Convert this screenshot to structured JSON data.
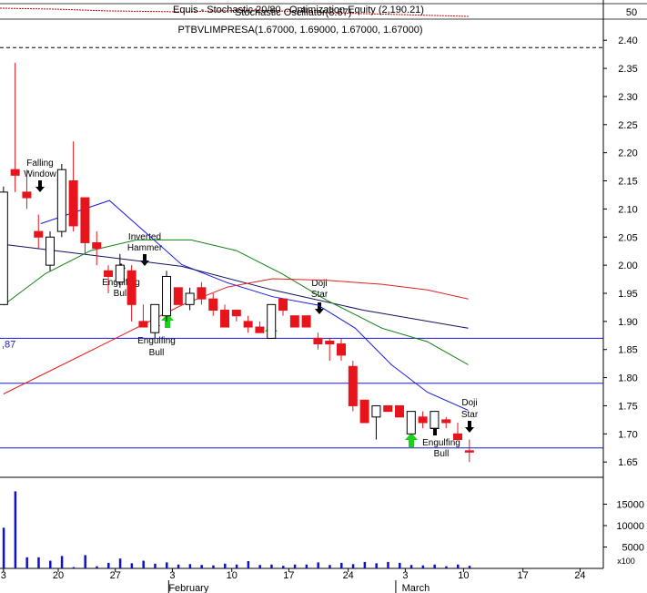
{
  "header": {
    "strip_texts": [
      "Equis - Stochastic 20/80",
      "Stochastic Oscillator(8.67)",
      "Optimization Equity (2,190.21)"
    ],
    "strip_tick": "50"
  },
  "chart_data": {
    "type": "candlestick",
    "title": "PTBVLIMPRESA(1.67000, 1.69000, 1.67000, 1.67000)",
    "open": [
      1.93,
      2.17,
      2.13,
      2.06,
      2.0,
      2.06,
      2.15,
      2.12,
      2.04,
      1.99,
      1.97,
      1.99,
      1.9,
      1.88,
      1.91,
      1.96,
      1.93,
      1.96,
      1.94,
      1.92,
      1.92,
      1.9,
      1.89,
      1.87,
      1.94,
      1.91,
      1.91,
      1.87,
      1.865,
      1.86,
      1.82,
      1.76,
      1.73,
      1.75,
      1.75,
      1.7,
      1.73,
      1.71,
      1.725,
      1.7,
      1.67
    ],
    "high": [
      2.14,
      2.36,
      2.17,
      2.09,
      2.06,
      2.18,
      2.22,
      2.12,
      2.06,
      2.0,
      2.02,
      2.0,
      1.93,
      1.93,
      1.99,
      1.96,
      1.96,
      1.97,
      1.95,
      1.93,
      1.92,
      1.91,
      1.9,
      1.93,
      1.94,
      1.91,
      1.91,
      1.88,
      1.87,
      1.87,
      1.83,
      1.76,
      1.75,
      1.75,
      1.75,
      1.74,
      1.74,
      1.74,
      1.73,
      1.72,
      1.69
    ],
    "low": [
      1.93,
      2.13,
      2.1,
      2.03,
      1.99,
      2.05,
      2.06,
      2.02,
      2.0,
      1.95,
      1.96,
      1.9,
      1.89,
      1.87,
      1.9,
      1.93,
      1.92,
      1.93,
      1.91,
      1.89,
      1.9,
      1.88,
      1.88,
      1.87,
      1.91,
      1.89,
      1.89,
      1.85,
      1.83,
      1.83,
      1.74,
      1.72,
      1.69,
      1.74,
      1.73,
      1.7,
      1.71,
      1.71,
      1.71,
      1.69,
      1.65
    ],
    "close": [
      2.13,
      2.16,
      2.12,
      2.05,
      2.05,
      2.17,
      2.07,
      2.04,
      2.03,
      1.98,
      2.0,
      1.93,
      1.89,
      1.93,
      1.98,
      1.93,
      1.95,
      1.94,
      1.92,
      1.89,
      1.91,
      1.89,
      1.88,
      1.93,
      1.92,
      1.89,
      1.89,
      1.86,
      1.86,
      1.84,
      1.75,
      1.72,
      1.75,
      1.74,
      1.73,
      1.74,
      1.72,
      1.74,
      1.72,
      1.69,
      1.67
    ],
    "up_color": "#ffffff",
    "down_color": "#e8141c",
    "volume": [
      9500,
      18000,
      2600,
      2600,
      1800,
      2900,
      300,
      3100,
      500,
      1300,
      2300,
      1200,
      1800,
      1100,
      1400,
      900,
      1000,
      800,
      700,
      1100,
      900,
      1700,
      800,
      900,
      600,
      900,
      900,
      1400,
      800,
      1300,
      1000,
      1500,
      1200,
      1500,
      1300,
      800,
      700,
      900,
      500,
      900,
      600
    ],
    "volume_color": "#1010c8",
    "volume_lim": [
      0,
      20000
    ],
    "volume_ticks": [
      15000,
      10000,
      5000
    ],
    "volume_unit": "x100",
    "lines": [
      {
        "color": "#1a1ae0",
        "x": [
          3.2,
          9.1,
          12.2,
          15.3,
          19.2,
          23.1,
          27.0,
          30.2,
          33.3,
          36.4,
          39.9
        ],
        "values": [
          2.074,
          2.115,
          2.058,
          2.001,
          1.969,
          1.944,
          1.929,
          1.888,
          1.823,
          1.774,
          1.742
        ]
      },
      {
        "color": "#101060",
        "x": [
          0,
          7.5,
          15.3,
          23.1,
          30.9,
          39.9
        ],
        "values": [
          2.037,
          2.018,
          1.998,
          1.956,
          1.92,
          1.888
        ]
      },
      {
        "color": "#108010",
        "x": [
          0,
          3.6,
          7.5,
          11.4,
          16.1,
          20.0,
          23.9,
          27.8,
          32.5,
          36.4,
          39.9
        ],
        "values": [
          1.929,
          1.985,
          2.026,
          2.045,
          2.045,
          2.026,
          1.985,
          1.937,
          1.888,
          1.864,
          1.823
        ]
      },
      {
        "color": "#e02020",
        "x": [
          0,
          7.5,
          15.3,
          19.2,
          23.1,
          27.8,
          32.5,
          36.4,
          39.9
        ],
        "values": [
          1.771,
          1.848,
          1.929,
          1.961,
          1.976,
          1.973,
          1.966,
          1.956,
          1.94
        ]
      }
    ],
    "levels": [
      {
        "value": 1.87,
        "label": ",87"
      },
      {
        "value": 1.79
      },
      {
        "value": 1.675
      }
    ],
    "level_color": "#1a1ac8",
    "dashed_level": 2.387,
    "xlim": [
      -0.3,
      51.5
    ],
    "xticks": [
      {
        "value": 0,
        "label": "3"
      },
      {
        "value": 4.7,
        "label": "20"
      },
      {
        "value": 9.6,
        "label": "27"
      },
      {
        "value": 14.5,
        "label": "3"
      },
      {
        "value": 19.6,
        "label": "10"
      },
      {
        "value": 24.5,
        "label": "17"
      },
      {
        "value": 29.6,
        "label": "24"
      },
      {
        "value": 34.5,
        "label": "3"
      },
      {
        "value": 39.5,
        "label": "10"
      },
      {
        "value": 44.6,
        "label": "17"
      },
      {
        "value": 49.5,
        "label": "24"
      }
    ],
    "months": [
      {
        "value": 15.9,
        "label": "February"
      },
      {
        "value": 35.4,
        "label": "March"
      }
    ],
    "ylim": [
      1.626,
      2.436
    ],
    "yticks": [
      {
        "value": 2.4,
        "label": "2.40"
      },
      2.35,
      {
        "value": 2.3,
        "label": "2.30"
      },
      2.25,
      {
        "value": 2.2,
        "label": "2.20"
      },
      2.15,
      {
        "value": 2.1,
        "label": "2.10"
      },
      2.05,
      {
        "value": 2.0,
        "label": "2.00"
      },
      1.95,
      {
        "value": 1.9,
        "label": "1.90"
      },
      1.85,
      {
        "value": 1.8,
        "label": "1.80"
      },
      1.75,
      {
        "value": 1.7,
        "label": "1.70"
      },
      1.65
    ],
    "annotations": [
      {
        "lines": [
          "Falling",
          "Window"
        ]
      },
      {
        "lines": [
          "Inverted",
          "Hammer"
        ]
      },
      {
        "lines": [
          "Engulfing",
          "Bull"
        ]
      },
      {
        "lines": [
          "Engulfing",
          "Bull"
        ]
      },
      {
        "lines": [
          "Doji",
          "Star"
        ]
      },
      {
        "lines": [
          "Engulfing",
          "Bull"
        ]
      },
      {
        "lines": [
          "Doji",
          "Star"
        ]
      }
    ]
  }
}
